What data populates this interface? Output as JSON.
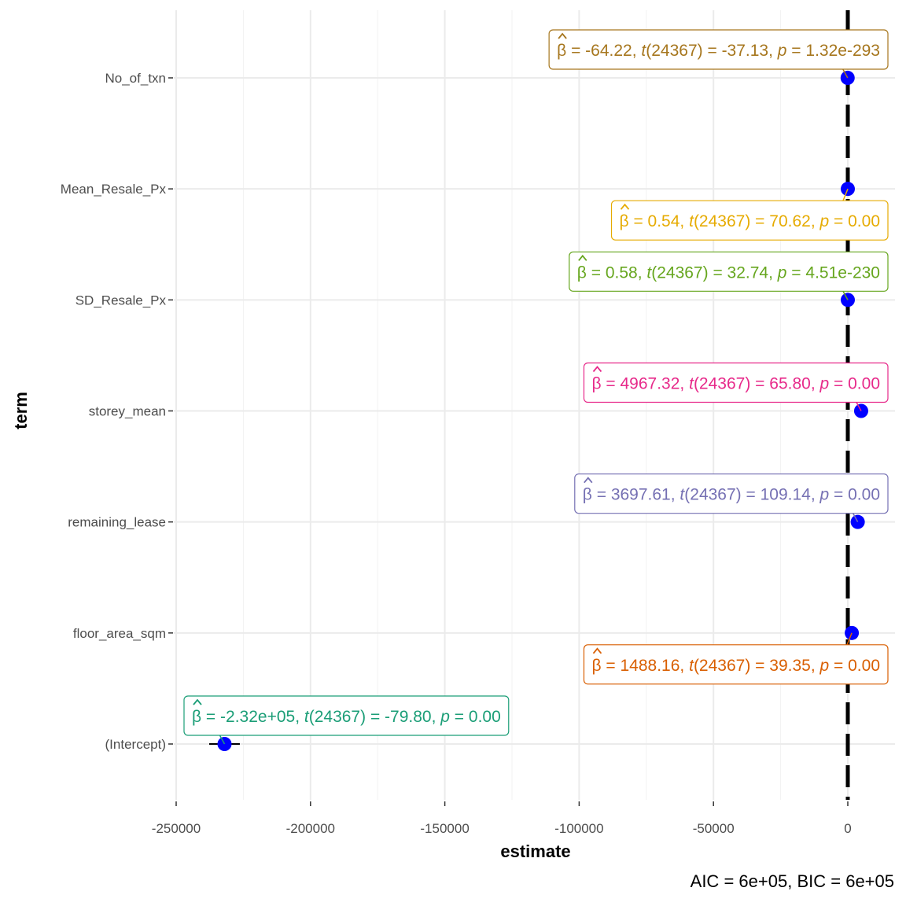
{
  "chart_data": {
    "type": "scatter",
    "subtype": "coefficient-plot",
    "xlabel": "estimate",
    "ylabel": "term",
    "xlim": [
      -252000,
      17000
    ],
    "xticks": [
      -250000,
      -200000,
      -150000,
      -100000,
      -50000,
      0
    ],
    "xtick_labels": [
      "-250000",
      "-200000",
      "-150000",
      "-100000",
      "-50000",
      "0"
    ],
    "reference_line": {
      "x": 0,
      "style": "dashed",
      "color": "#000000"
    },
    "point_color": "#0000ff",
    "grid": true,
    "caption": {
      "aic_label": "AIC",
      "aic_value": "6e+05",
      "bic_label": "BIC",
      "bic_value": "6e+05"
    },
    "terms": [
      {
        "term": "No_of_txn",
        "estimate": -64.22,
        "ci": [
          -67.6,
          -60.8
        ],
        "beta": "-64.22",
        "df": "24367",
        "t": "-37.13",
        "p": "1.32e-293",
        "color": "#a6761d",
        "label_side": "above"
      },
      {
        "term": "Mean_Resale_Px",
        "estimate": 0.54,
        "ci": [
          0.53,
          0.56
        ],
        "beta": "0.54",
        "df": "24367",
        "t": "70.62",
        "p": "0.00",
        "color": "#e6ab02",
        "label_side": "below"
      },
      {
        "term": "SD_Resale_Px",
        "estimate": 0.58,
        "ci": [
          0.54,
          0.61
        ],
        "beta": "0.58",
        "df": "24367",
        "t": "32.74",
        "p": "4.51e-230",
        "color": "#66a61e",
        "label_side": "above"
      },
      {
        "term": "storey_mean",
        "estimate": 4967.32,
        "ci": [
          4819.3,
          5115.3
        ],
        "beta": "4967.32",
        "df": "24367",
        "t": "65.80",
        "p": "0.00",
        "color": "#e7298a",
        "label_side": "above"
      },
      {
        "term": "remaining_lease",
        "estimate": 3697.61,
        "ci": [
          3631.2,
          3764.0
        ],
        "beta": "3697.61",
        "df": "24367",
        "t": "109.14",
        "p": "0.00",
        "color": "#7570b3",
        "label_side": "above"
      },
      {
        "term": "floor_area_sqm",
        "estimate": 1488.16,
        "ci": [
          1414.0,
          1562.3
        ],
        "beta": "1488.16",
        "df": "24367",
        "t": "39.35",
        "p": "0.00",
        "color": "#d95f02",
        "label_side": "below"
      },
      {
        "term": "(Intercept)",
        "estimate": -232000,
        "ci": [
          -237700,
          -226300
        ],
        "beta": "-2.32e+05",
        "df": "24367",
        "t": "-79.80",
        "p": "0.00",
        "color": "#1b9e77",
        "label_side": "above"
      }
    ]
  }
}
